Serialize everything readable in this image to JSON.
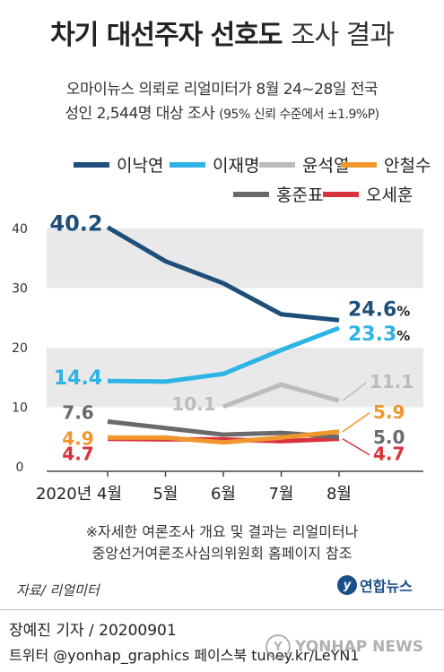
{
  "header": {
    "title_bold": "차기 대선주자 선호도",
    "title_light": "조사 결과",
    "subtitle_line1": "오마이뉴스 의뢰로 리얼미터가 8월 24~28일 전국",
    "subtitle_line2_main": "성인 2,544명 대상 조사",
    "subtitle_line2_small": "(95% 신뢰 수준에서 ±1.9%P)"
  },
  "colors": {
    "이낙연": "#1d4f7a",
    "이재명": "#2eb3e6",
    "윤석열": "#bcbcbc",
    "안철수": "#f0962c",
    "홍준표": "#6a6a6a",
    "오세훈": "#d8333c",
    "band": "#e9e9e9"
  },
  "chart_data": {
    "type": "line",
    "categories": [
      "2020년 4월",
      "5월",
      "6월",
      "7월",
      "8월"
    ],
    "ylim": [
      0,
      40
    ],
    "yticks": [
      "0",
      "10",
      "20",
      "30",
      "40"
    ],
    "grid": "alternating horizontal bands",
    "legend_position": "top",
    "series": [
      {
        "name": "이낙연",
        "values": [
          40.2,
          34.5,
          30.8,
          25.6,
          24.6
        ]
      },
      {
        "name": "이재명",
        "values": [
          14.4,
          14.3,
          15.6,
          19.6,
          23.3
        ]
      },
      {
        "name": "윤석열",
        "values": [
          null,
          null,
          10.1,
          13.8,
          11.1
        ]
      },
      {
        "name": "안철수",
        "values": [
          4.9,
          4.9,
          4.1,
          4.9,
          5.9
        ]
      },
      {
        "name": "홍준표",
        "values": [
          7.6,
          6.5,
          5.4,
          5.7,
          5.0
        ]
      },
      {
        "name": "오세훈",
        "values": [
          4.7,
          4.6,
          4.6,
          4.3,
          4.7
        ]
      }
    ],
    "data_labels": [
      {
        "series": "이낙연",
        "index": 0,
        "text": "40.2"
      },
      {
        "series": "이낙연",
        "index": 4,
        "text": "24.6",
        "unit": "%"
      },
      {
        "series": "이재명",
        "index": 0,
        "text": "14.4"
      },
      {
        "series": "이재명",
        "index": 4,
        "text": "23.3",
        "unit": "%"
      },
      {
        "series": "윤석열",
        "index": 2,
        "text": "10.1"
      },
      {
        "series": "윤석열",
        "index": 4,
        "text": "11.1"
      },
      {
        "series": "홍준표",
        "index": 0,
        "text": "7.6"
      },
      {
        "series": "홍준표",
        "index": 4,
        "text": "5.0"
      },
      {
        "series": "안철수",
        "index": 0,
        "text": "4.9"
      },
      {
        "series": "안철수",
        "index": 4,
        "text": "5.9"
      },
      {
        "series": "오세훈",
        "index": 0,
        "text": "4.7"
      },
      {
        "series": "오세훈",
        "index": 4,
        "text": "4.7"
      }
    ]
  },
  "notes": {
    "line1": "※자세한 여론조사 개요 및 결과는 리얼미터나",
    "line2": "중앙선거여론조사심의위원회 홈페이지 참조"
  },
  "source": "자료/ 리얼미터",
  "logo": {
    "text": "연합뉴스",
    "mark": "y"
  },
  "footer": {
    "reporter": "장예진 기자 / 20200901",
    "social": "트위터 @yonhap_graphics  페이스북 tuney.kr/LeYN1"
  },
  "watermark": {
    "text": "YONHAP NEWS",
    "mark": "Y"
  }
}
